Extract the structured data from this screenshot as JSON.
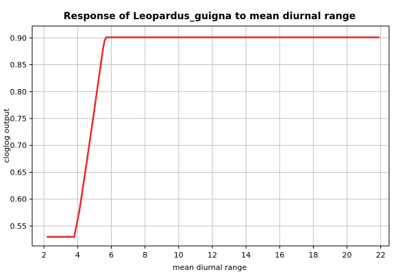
{
  "chart_data": {
    "type": "line",
    "title": "Response of Leopardus_guigna to mean diurnal range",
    "xlabel": "mean diurnal range",
    "ylabel": "cloglog output",
    "xlim": [
      1.3,
      22.5
    ],
    "ylim": [
      0.513,
      0.922
    ],
    "x_ticks": [
      2,
      4,
      6,
      8,
      10,
      12,
      14,
      16,
      18,
      20,
      22
    ],
    "y_ticks": [
      0.55,
      0.6,
      0.65,
      0.7,
      0.75,
      0.8,
      0.85,
      0.9
    ],
    "x_tick_labels": [
      "2",
      "4",
      "6",
      "8",
      "10",
      "12",
      "14",
      "16",
      "18",
      "20",
      "22"
    ],
    "y_tick_labels": [
      "0.55",
      "0.60",
      "0.65",
      "0.70",
      "0.75",
      "0.80",
      "0.85",
      "0.90"
    ],
    "grid": true,
    "line_color": "#e8282a",
    "series": [
      {
        "x": [
          2.2,
          3.8,
          4.1,
          4.5,
          5.0,
          5.5,
          5.6,
          5.7,
          21.9
        ],
        "y": [
          0.53,
          0.53,
          0.578,
          0.66,
          0.768,
          0.878,
          0.895,
          0.901,
          0.901
        ]
      }
    ]
  }
}
